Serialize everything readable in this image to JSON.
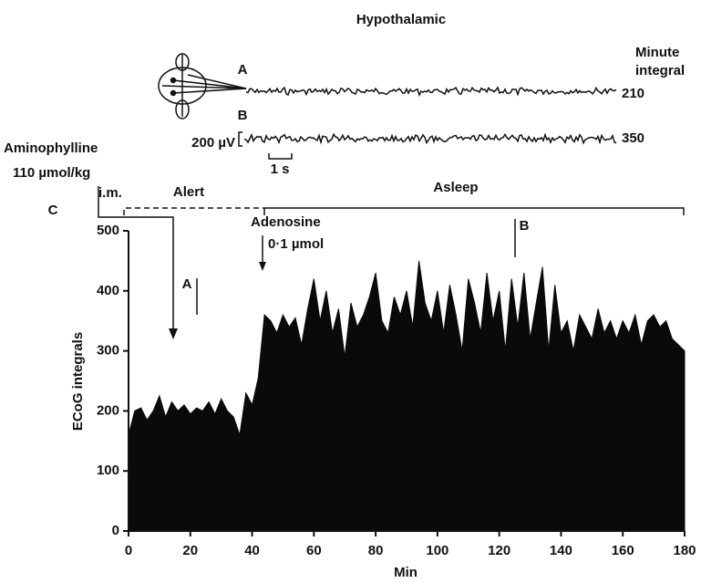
{
  "chart_data": {
    "type": "area",
    "title": "Hypothalamic",
    "panel_label": "C",
    "xlabel": "Min",
    "ylabel": "ECoG integrals",
    "color": "#0a0a0a",
    "xlim": [
      0,
      180
    ],
    "xticks": [
      0,
      20,
      40,
      60,
      80,
      100,
      120,
      140,
      160,
      180
    ],
    "ylim": [
      0,
      500
    ],
    "yticks": [
      0,
      100,
      200,
      300,
      400,
      500
    ],
    "x": [
      0,
      2,
      4,
      6,
      8,
      10,
      12,
      14,
      16,
      18,
      20,
      22,
      24,
      26,
      28,
      30,
      32,
      34,
      36,
      38,
      40,
      42,
      44,
      46,
      48,
      50,
      52,
      54,
      56,
      58,
      60,
      62,
      64,
      66,
      68,
      70,
      72,
      74,
      76,
      78,
      80,
      82,
      84,
      86,
      88,
      90,
      92,
      94,
      96,
      98,
      100,
      102,
      104,
      106,
      108,
      110,
      112,
      114,
      116,
      118,
      120,
      122,
      124,
      126,
      128,
      130,
      132,
      134,
      136,
      138,
      140,
      142,
      144,
      146,
      148,
      150,
      152,
      154,
      156,
      158,
      160,
      162,
      164,
      166,
      168,
      170,
      172,
      174,
      176,
      178,
      180
    ],
    "values": [
      160,
      200,
      205,
      185,
      200,
      225,
      190,
      215,
      200,
      210,
      195,
      205,
      200,
      215,
      195,
      220,
      200,
      190,
      160,
      230,
      210,
      255,
      360,
      350,
      330,
      360,
      340,
      355,
      310,
      370,
      420,
      350,
      400,
      330,
      370,
      290,
      380,
      340,
      360,
      390,
      430,
      350,
      330,
      390,
      360,
      400,
      340,
      450,
      380,
      350,
      400,
      330,
      410,
      360,
      300,
      420,
      380,
      330,
      430,
      350,
      400,
      300,
      420,
      340,
      430,
      320,
      380,
      440,
      300,
      410,
      330,
      350,
      300,
      360,
      340,
      320,
      370,
      330,
      350,
      320,
      350,
      330,
      360,
      310,
      350,
      360,
      340,
      350,
      320,
      310,
      300
    ],
    "traces": [
      {
        "label": "A",
        "integral": 210
      },
      {
        "label": "B",
        "integral": 350
      }
    ],
    "integral_label": [
      "Minute",
      "integral"
    ],
    "scale_bars": {
      "voltage": "200 µV",
      "time": "1 s"
    },
    "annotations": {
      "drug1": [
        "Aminophylline",
        "110 µmol/kg",
        "i.m."
      ],
      "drug2": [
        "Adenosine",
        "0·1 µmol"
      ],
      "state1": "Alert",
      "state2": "Asleep",
      "marker_a": "A",
      "marker_b": "B"
    }
  }
}
